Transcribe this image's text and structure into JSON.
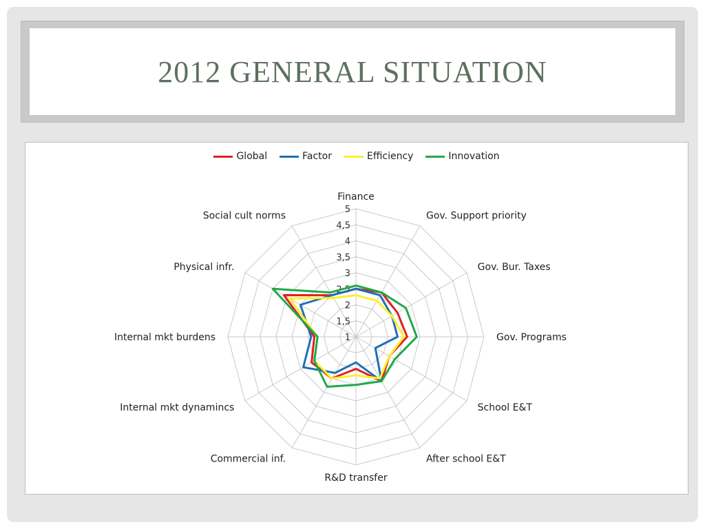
{
  "slide": {
    "title": "2012 GENERAL SITUATION"
  },
  "chart_data": {
    "type": "radar",
    "title": "",
    "axes": [
      "Finance",
      "Gov. Support priority",
      "Gov. Bur. Taxes",
      "Gov. Programs",
      "School E&T",
      "After school E&T",
      "R&D transfer",
      "Commercial inf.",
      "Internal mkt dynamincs",
      "Internal mkt burdens",
      "Physical infr.",
      "Social cult norms"
    ],
    "scale": {
      "min": 1,
      "max": 5,
      "ticks": [
        "1",
        "1,5",
        "2",
        "2,5",
        "3",
        "3,5",
        "4",
        "4,5",
        "5"
      ]
    },
    "series": [
      {
        "name": "Global",
        "color": "#e02020",
        "values": [
          2.5,
          2.6,
          2.5,
          2.6,
          2.2,
          2.6,
          2.0,
          2.5,
          2.6,
          2.3,
          3.6,
          2.5
        ]
      },
      {
        "name": "Factor",
        "color": "#1f6fb5",
        "values": [
          2.5,
          2.5,
          2.3,
          2.3,
          1.7,
          2.6,
          1.8,
          2.3,
          2.9,
          2.4,
          3.0,
          2.5
        ]
      },
      {
        "name": "Efficiency",
        "color": "#ffef2a",
        "values": [
          2.3,
          2.3,
          2.3,
          2.5,
          2.2,
          2.5,
          2.2,
          2.5,
          2.5,
          2.2,
          3.4,
          2.4
        ]
      },
      {
        "name": "Innovation",
        "color": "#1fa84a",
        "values": [
          2.6,
          2.6,
          2.8,
          2.9,
          2.4,
          2.6,
          2.5,
          2.8,
          2.5,
          2.2,
          4.0,
          2.6
        ]
      }
    ],
    "grid": true,
    "legend_position": "top"
  }
}
